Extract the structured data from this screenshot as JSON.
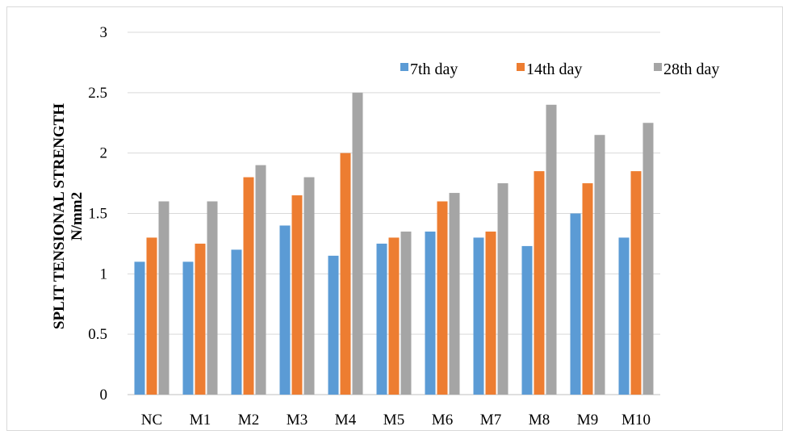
{
  "chart_data": {
    "type": "bar",
    "categories": [
      "NC",
      "M1",
      "M2",
      "M3",
      "M4",
      "M5",
      "M6",
      "M7",
      "M8",
      "M9",
      "M10"
    ],
    "series": [
      {
        "name": "7th day",
        "color": "#5b9bd5",
        "values": [
          1.1,
          1.1,
          1.2,
          1.4,
          1.15,
          1.25,
          1.35,
          1.3,
          1.23,
          1.5,
          1.3
        ]
      },
      {
        "name": "14th day",
        "color": "#ed7d31",
        "values": [
          1.3,
          1.25,
          1.8,
          1.65,
          2.0,
          1.3,
          1.6,
          1.35,
          1.85,
          1.75,
          1.85
        ]
      },
      {
        "name": "28th day",
        "color": "#a5a5a5",
        "values": [
          1.6,
          1.6,
          1.9,
          1.8,
          2.5,
          1.35,
          1.67,
          1.75,
          2.4,
          2.15,
          2.25
        ]
      }
    ],
    "ylabel_line1": "SPLIT TENSIONAL STRENGTH",
    "ylabel_line2": "N/mm2",
    "xlabel": "",
    "ylim": [
      0,
      3
    ],
    "yticks": [
      "0",
      "0.5",
      "1",
      "1.5",
      "2",
      "2.5",
      "3"
    ],
    "grid": true,
    "legend_position": "top-right"
  }
}
